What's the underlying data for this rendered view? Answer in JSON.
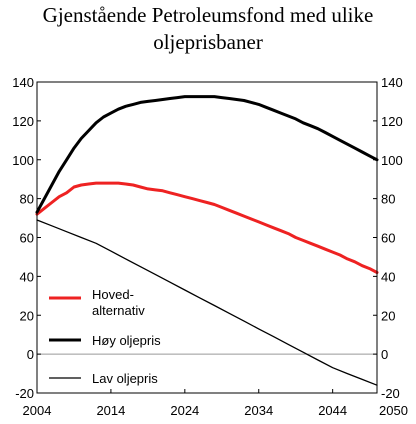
{
  "chart_data": {
    "type": "line",
    "title_lines": [
      "Gjenstående Petroleumsfond med ulike",
      "oljeprisbaner"
    ],
    "xlabel": "",
    "ylabel": "",
    "xlim": [
      2004,
      2050
    ],
    "ylim": [
      -20,
      140
    ],
    "x_ticks": [
      2004,
      2014,
      2024,
      2034,
      2044,
      2050
    ],
    "y_ticks": [
      -20,
      0,
      20,
      40,
      60,
      80,
      100,
      120,
      140
    ],
    "y_tick_labels": [
      "-20",
      "0",
      "20",
      "40",
      "60",
      "80",
      "100",
      "120",
      "140"
    ],
    "grid": false,
    "zero_line": true,
    "legend_position": "lower-left",
    "series": [
      {
        "name": "Hoved-alternativ",
        "legend_lines": [
          "Hoved-",
          "alternativ"
        ],
        "color": "#ee2222",
        "x": [
          2004,
          2005,
          2006,
          2007,
          2008,
          2009,
          2010,
          2011,
          2012,
          2013,
          2014,
          2015,
          2016,
          2017,
          2018,
          2019,
          2020,
          2021,
          2022,
          2023,
          2024,
          2025,
          2026,
          2027,
          2028,
          2029,
          2030,
          2031,
          2032,
          2033,
          2034,
          2035,
          2036,
          2037,
          2038,
          2039,
          2040,
          2041,
          2042,
          2043,
          2044,
          2045,
          2046,
          2047,
          2048,
          2049,
          2050
        ],
        "y": [
          72,
          75,
          78,
          81,
          83,
          86,
          87,
          87.5,
          88,
          88,
          88,
          88,
          87.5,
          87,
          86,
          85,
          84.5,
          84,
          83,
          82,
          81,
          80,
          79,
          78,
          77,
          75.5,
          74,
          72.5,
          71,
          69.5,
          68,
          66.5,
          65,
          63.5,
          62,
          60,
          58.5,
          57,
          55.5,
          54,
          52.5,
          51,
          49,
          47.5,
          45.5,
          44,
          42
        ]
      },
      {
        "name": "Høy oljepris",
        "legend_lines": [
          "Høy oljepris"
        ],
        "color": "#000000",
        "x": [
          2004,
          2005,
          2006,
          2007,
          2008,
          2009,
          2010,
          2011,
          2012,
          2013,
          2014,
          2015,
          2016,
          2017,
          2018,
          2019,
          2020,
          2021,
          2022,
          2023,
          2024,
          2025,
          2026,
          2027,
          2028,
          2029,
          2030,
          2031,
          2032,
          2033,
          2034,
          2035,
          2036,
          2037,
          2038,
          2039,
          2040,
          2041,
          2042,
          2043,
          2044,
          2045,
          2046,
          2047,
          2048,
          2049,
          2050
        ],
        "y": [
          73,
          80,
          87,
          94,
          100,
          106,
          111,
          115,
          119,
          122,
          124,
          126,
          127.5,
          128.5,
          129.5,
          130,
          130.5,
          131,
          131.5,
          132,
          132.5,
          132.5,
          132.5,
          132.5,
          132.5,
          132,
          131.5,
          131,
          130.5,
          129.5,
          128.5,
          127,
          125.5,
          124,
          122.5,
          121,
          119,
          117.5,
          116,
          114,
          112,
          110,
          108,
          106,
          104,
          102,
          100
        ]
      },
      {
        "name": "Lav oljepris",
        "legend_lines": [
          "Lav oljepris"
        ],
        "color": "#000000",
        "x": [
          2004,
          2006,
          2008,
          2010,
          2012,
          2014,
          2016,
          2018,
          2020,
          2022,
          2024,
          2026,
          2028,
          2030,
          2032,
          2034,
          2036,
          2038,
          2040,
          2042,
          2044,
          2046,
          2048,
          2050
        ],
        "y": [
          69,
          66,
          63,
          60,
          57,
          53,
          49,
          45,
          41,
          37,
          33,
          29,
          25,
          21,
          17,
          13,
          9,
          5,
          1,
          -3,
          -7,
          -10,
          -13,
          -16
        ]
      }
    ]
  }
}
